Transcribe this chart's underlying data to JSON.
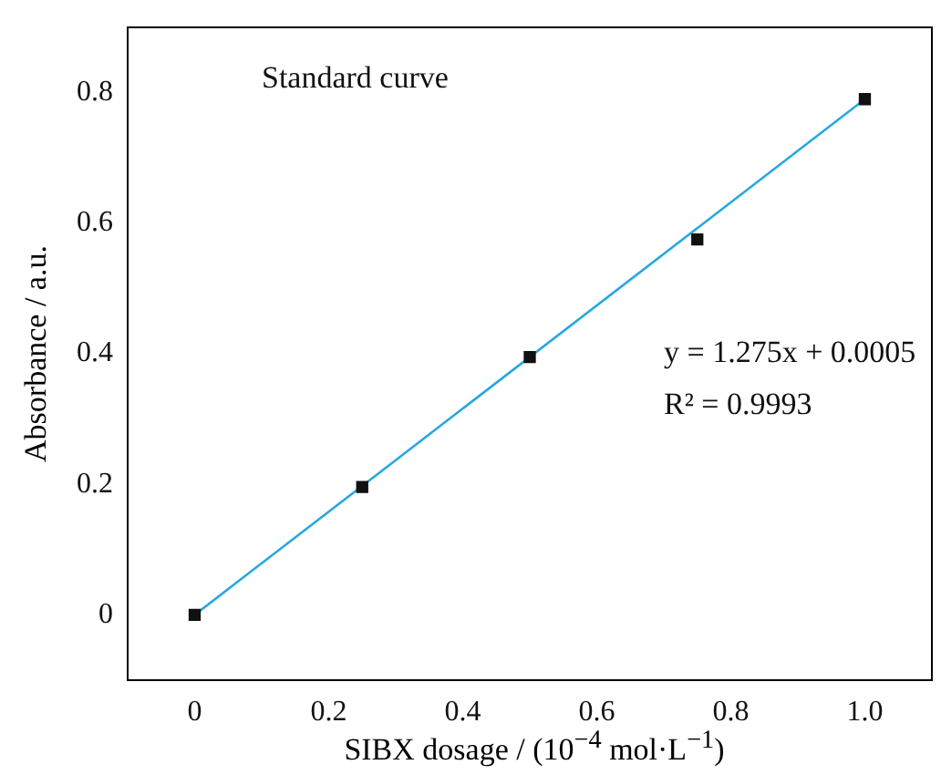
{
  "chart_data": {
    "type": "scatter",
    "xlabel": "SIBX dosage / (10$^{−4}$ mol·L$^{−1}$)",
    "ylabel": "Absorbance / a.u.",
    "annotations": [
      "Standard curve",
      "y = 1.275x + 0.0005",
      "R² = 0.9993"
    ],
    "xlim": [
      -0.1,
      1.1
    ],
    "xticks": [
      0,
      0.2,
      0.4,
      0.6,
      0.8,
      {
        "value": 1,
        "label": "1.0"
      }
    ],
    "ylim": [
      -0.1,
      0.9
    ],
    "yticks": [
      0,
      0.2,
      0.4,
      0.6,
      0.8
    ],
    "grid": false,
    "legend": false,
    "marker": "square",
    "series": [
      {
        "color": "#111111",
        "x": [
          0,
          0.25,
          0.5,
          0.75,
          1
        ],
        "values": [
          0,
          0.196,
          0.395,
          0.575,
          0.79
        ]
      },
      {
        "type": "line",
        "color": "#29a8e0",
        "x": [
          0,
          1
        ],
        "values": [
          0,
          0.79
        ],
        "marker": "none",
        "line_style": "solid"
      }
    ]
  }
}
